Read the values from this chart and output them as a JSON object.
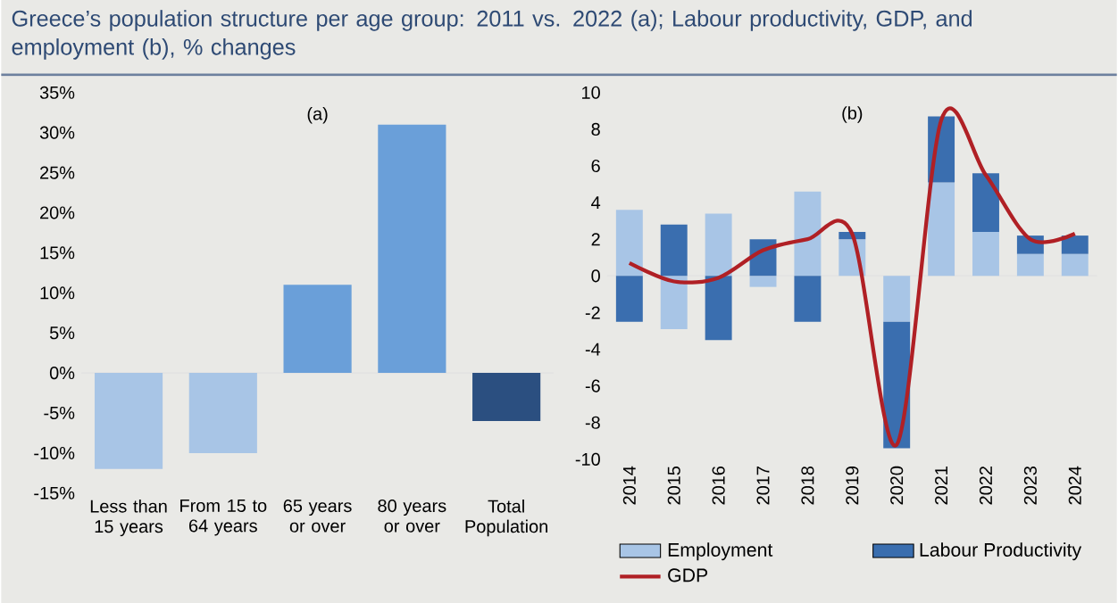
{
  "chart_data": [
    {
      "type": "bar",
      "title": "Greece’s population structure per age group: 2011 vs. 2022 (a); Labour productivity, GDP, and employment (b), % changes",
      "subtitle": "(a)",
      "categories": [
        "Less than 15 years",
        "From 15 to 64 years",
        "65 years or over",
        "80 years or over",
        "Total Population"
      ],
      "values": [
        -12,
        -10,
        11,
        31,
        -6
      ],
      "colors": [
        "#a8c5e6",
        "#a8c5e6",
        "#6a9fd9",
        "#6a9fd9",
        "#2b4f80"
      ],
      "ylim": [
        -15,
        35
      ],
      "yticks": [
        {
          "value": -15,
          "label": "-15%"
        },
        {
          "value": -10,
          "label": "-10%"
        },
        {
          "value": -5,
          "label": "-5%"
        },
        {
          "value": 0,
          "label": "0%"
        },
        {
          "value": 5,
          "label": "5%"
        },
        {
          "value": 10,
          "label": "10%"
        },
        {
          "value": 15,
          "label": "15%"
        },
        {
          "value": 20,
          "label": "20%"
        },
        {
          "value": 25,
          "label": "25%"
        },
        {
          "value": 30,
          "label": "30%"
        },
        {
          "value": 35,
          "label": "35%"
        }
      ]
    },
    {
      "type": "bar",
      "title": "(b)",
      "stacked": true,
      "legend": "bottom",
      "categories": [
        "2014",
        "2015",
        "2016",
        "2017",
        "2018",
        "2019",
        "2020",
        "2021",
        "2022",
        "2023",
        "2024"
      ],
      "series": [
        {
          "name": "Employment",
          "color": "#a8c5e6",
          "values": [
            3.6,
            -2.9,
            3.4,
            -0.6,
            4.6,
            2.0,
            -2.5,
            5.1,
            2.4,
            1.2,
            1.2
          ]
        },
        {
          "name": "Labour Productivity",
          "color": "#3a6eaf",
          "values": [
            -2.5,
            2.8,
            -3.5,
            2.0,
            -2.5,
            0.4,
            -6.9,
            3.6,
            3.2,
            1.0,
            1.0
          ]
        },
        {
          "name": "GDP",
          "type": "line",
          "color": "#b02025",
          "values": [
            0.7,
            -0.3,
            -0.1,
            1.4,
            2.0,
            2.3,
            -9.2,
            8.5,
            5.5,
            2.0,
            2.3
          ]
        }
      ],
      "ylim": [
        -10,
        10
      ],
      "yticks": [
        -10,
        -8,
        -6,
        -4,
        -2,
        0,
        2,
        4,
        6,
        8,
        10
      ]
    }
  ]
}
